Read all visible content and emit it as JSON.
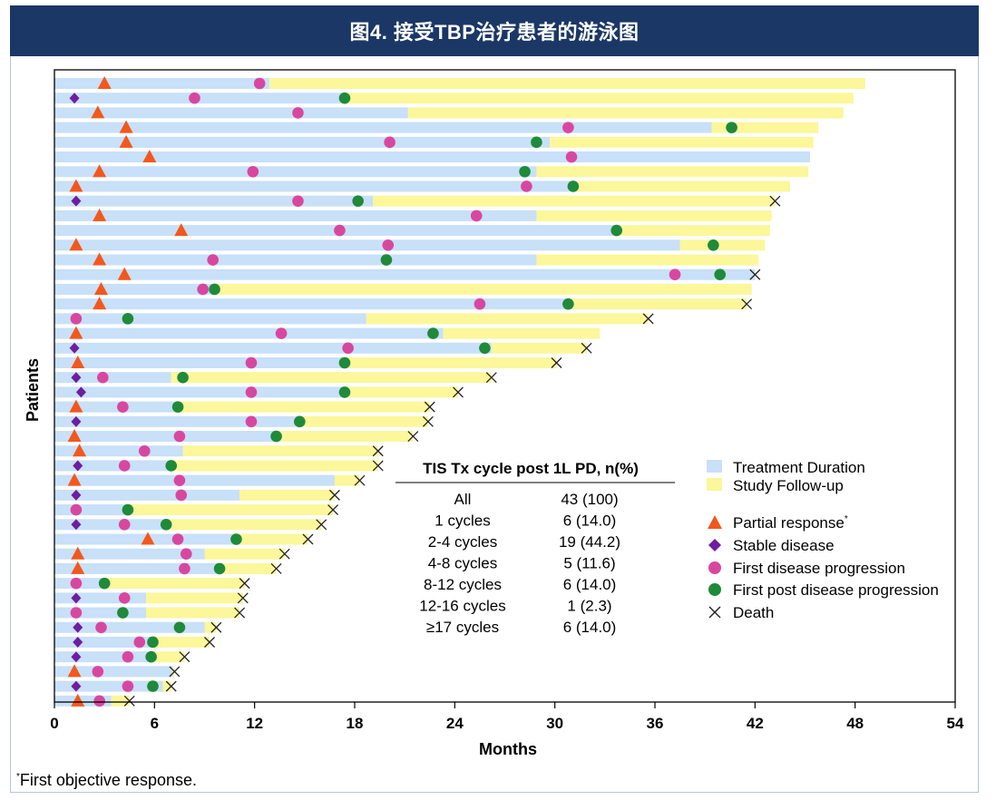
{
  "header": {
    "title": "图4. 接受TBP治疗患者的游泳图"
  },
  "footnote": {
    "mark": "*",
    "text": "First objective response."
  },
  "chart_data": {
    "type": "swimmer",
    "xlabel": "Months",
    "ylabel": "Patients",
    "xlim": [
      0,
      54
    ],
    "xticks": [
      0,
      6,
      12,
      18,
      24,
      30,
      36,
      42,
      48,
      54
    ],
    "legend": {
      "treatment": "Treatment Duration",
      "followup": "Study Follow-up",
      "pr": "Partial response",
      "pr_mark": "*",
      "sd": "Stable disease",
      "fdp": "First disease progression",
      "fpdp": "First post disease progression",
      "death": "Death"
    },
    "colors": {
      "treatment": "#c8e0f8",
      "followup": "#fbf79a",
      "pr": "#f2581d",
      "sd": "#6e1ea0",
      "fdp": "#d8479f",
      "fpdp": "#1f8a3a",
      "death": "#222222",
      "header": "#1b3766"
    },
    "table": {
      "title": "TIS Tx cycle post 1L PD, n(%)",
      "rows": [
        [
          "All",
          "43 (100)"
        ],
        [
          "1 cycles",
          "6 (14.0)"
        ],
        [
          "2-4 cycles",
          "19 (44.2)"
        ],
        [
          "4-8 cycles",
          "5 (11.6)"
        ],
        [
          "8-12 cycles",
          "6 (14.0)"
        ],
        [
          "12-16 cycles",
          "1 (2.3)"
        ],
        [
          "≥17 cycles",
          "6 (14.0)"
        ]
      ]
    },
    "patients": [
      {
        "tx": 12.9,
        "end": 48.6,
        "resp": "pr",
        "rx": 3.0,
        "fdp": 12.3,
        "fpdp": null,
        "death": null
      },
      {
        "tx": 17.4,
        "end": 47.9,
        "resp": "sd",
        "rx": 1.2,
        "fdp": 8.4,
        "fpdp": 17.4,
        "death": null
      },
      {
        "tx": 21.2,
        "end": 47.3,
        "resp": "pr",
        "rx": 2.6,
        "fdp": 14.6,
        "fpdp": null,
        "death": null
      },
      {
        "tx": 39.4,
        "end": 45.8,
        "resp": "pr",
        "rx": 4.3,
        "fdp": 30.8,
        "fpdp": 40.6,
        "death": null
      },
      {
        "tx": 29.7,
        "end": 45.5,
        "resp": "pr",
        "rx": 4.3,
        "fdp": 20.1,
        "fpdp": 28.9,
        "death": null
      },
      {
        "tx": 45.3,
        "end": 45.3,
        "resp": "pr",
        "rx": 5.7,
        "fdp": 31.0,
        "fpdp": null,
        "death": null
      },
      {
        "tx": 28.9,
        "end": 45.2,
        "resp": "pr",
        "rx": 2.7,
        "fdp": 11.9,
        "fpdp": 28.2,
        "death": null
      },
      {
        "tx": 31.1,
        "end": 44.1,
        "resp": "pr",
        "rx": 1.3,
        "fdp": 28.3,
        "fpdp": 31.1,
        "death": null
      },
      {
        "tx": 19.1,
        "end": 43.2,
        "resp": "sd",
        "rx": 1.3,
        "fdp": 14.6,
        "fpdp": 18.2,
        "death": 43.2
      },
      {
        "tx": 28.9,
        "end": 43.0,
        "resp": "pr",
        "rx": 2.7,
        "fdp": 25.3,
        "fpdp": null,
        "death": null
      },
      {
        "tx": 33.7,
        "end": 42.9,
        "resp": "pr",
        "rx": 7.6,
        "fdp": 17.1,
        "fpdp": 33.7,
        "death": null
      },
      {
        "tx": 37.5,
        "end": 42.6,
        "resp": "pr",
        "rx": 1.3,
        "fdp": 20.0,
        "fpdp": 39.5,
        "death": null
      },
      {
        "tx": 28.9,
        "end": 42.2,
        "resp": "pr",
        "rx": 2.7,
        "fdp": 9.5,
        "fpdp": 19.9,
        "death": null
      },
      {
        "tx": 42.0,
        "end": 42.0,
        "resp": "pr",
        "rx": 4.2,
        "fdp": 37.2,
        "fpdp": 39.9,
        "death": 42.0
      },
      {
        "tx": 9.6,
        "end": 41.8,
        "resp": "pr",
        "rx": 2.8,
        "fdp": 8.9,
        "fpdp": 9.6,
        "death": null
      },
      {
        "tx": 30.8,
        "end": 41.5,
        "resp": "pr",
        "rx": 2.7,
        "fdp": 25.5,
        "fpdp": 30.8,
        "death": 41.5
      },
      {
        "tx": 18.7,
        "end": 35.6,
        "resp": "fdp",
        "rx": 1.3,
        "fdp": 1.3,
        "fpdp": 4.4,
        "death": 35.6
      },
      {
        "tx": 23.3,
        "end": 32.7,
        "resp": "pr",
        "rx": 1.3,
        "fdp": 13.6,
        "fpdp": 22.7,
        "death": null
      },
      {
        "tx": 26.2,
        "end": 31.9,
        "resp": "sd",
        "rx": 1.2,
        "fdp": 17.6,
        "fpdp": 25.8,
        "death": 31.9
      },
      {
        "tx": 17.4,
        "end": 30.1,
        "resp": "pr",
        "rx": 1.4,
        "fdp": 11.8,
        "fpdp": 17.4,
        "death": 30.1
      },
      {
        "tx": 7.0,
        "end": 26.2,
        "resp": "sd",
        "rx": 1.3,
        "fdp": 2.9,
        "fpdp": 7.7,
        "death": 26.2
      },
      {
        "tx": 17.4,
        "end": 24.2,
        "resp": "sd",
        "rx": 1.6,
        "fdp": 11.8,
        "fpdp": 17.4,
        "death": 24.2
      },
      {
        "tx": 7.4,
        "end": 22.5,
        "resp": "pr",
        "rx": 1.3,
        "fdp": 4.1,
        "fpdp": 7.4,
        "death": 22.5
      },
      {
        "tx": 14.7,
        "end": 22.4,
        "resp": "sd",
        "rx": 1.3,
        "fdp": 11.8,
        "fpdp": 14.7,
        "death": 22.4
      },
      {
        "tx": 13.3,
        "end": 21.5,
        "resp": "pr",
        "rx": 1.2,
        "fdp": 7.5,
        "fpdp": 13.3,
        "death": 21.5
      },
      {
        "tx": 7.7,
        "end": 19.4,
        "resp": "pr",
        "rx": 1.5,
        "fdp": 5.4,
        "fpdp": null,
        "death": 19.4
      },
      {
        "tx": 7.0,
        "end": 19.4,
        "resp": "sd",
        "rx": 1.4,
        "fdp": 4.2,
        "fpdp": 7.0,
        "death": 19.4
      },
      {
        "tx": 16.8,
        "end": 18.3,
        "resp": "pr",
        "rx": 1.2,
        "fdp": 7.5,
        "fpdp": null,
        "death": 18.3
      },
      {
        "tx": 11.1,
        "end": 16.8,
        "resp": "sd",
        "rx": 1.3,
        "fdp": 7.6,
        "fpdp": null,
        "death": 16.8
      },
      {
        "tx": 4.4,
        "end": 16.7,
        "resp": "fdp",
        "rx": 1.3,
        "fdp": 1.3,
        "fpdp": 4.4,
        "death": 16.7
      },
      {
        "tx": 6.7,
        "end": 16.0,
        "resp": "sd",
        "rx": 1.3,
        "fdp": 4.2,
        "fpdp": 6.7,
        "death": 16.0
      },
      {
        "tx": 10.9,
        "end": 15.2,
        "resp": "pr",
        "rx": 5.6,
        "fdp": 7.4,
        "fpdp": 10.9,
        "death": 15.2
      },
      {
        "tx": 9.0,
        "end": 13.8,
        "resp": "pr",
        "rx": 1.4,
        "fdp": 7.9,
        "fpdp": null,
        "death": 13.8
      },
      {
        "tx": 9.9,
        "end": 13.3,
        "resp": "pr",
        "rx": 1.4,
        "fdp": 7.8,
        "fpdp": 9.9,
        "death": 13.3
      },
      {
        "tx": 3.0,
        "end": 11.4,
        "resp": "fdp",
        "rx": 1.3,
        "fdp": 1.3,
        "fpdp": 3.0,
        "death": 11.4
      },
      {
        "tx": 5.5,
        "end": 11.3,
        "resp": "sd",
        "rx": 1.3,
        "fdp": 4.2,
        "fpdp": null,
        "death": 11.3
      },
      {
        "tx": 5.5,
        "end": 11.1,
        "resp": "fdp",
        "rx": 1.3,
        "fdp": 1.3,
        "fpdp": 4.1,
        "death": 11.1
      },
      {
        "tx": 9.0,
        "end": 9.7,
        "resp": "sd",
        "rx": 1.4,
        "fdp": 2.8,
        "fpdp": 7.5,
        "death": 9.7
      },
      {
        "tx": 6.0,
        "end": 9.3,
        "resp": "sd",
        "rx": 1.4,
        "fdp": 5.1,
        "fpdp": 5.9,
        "death": 9.3
      },
      {
        "tx": 6.0,
        "end": 7.8,
        "resp": "sd",
        "rx": 1.3,
        "fdp": 4.4,
        "fpdp": 5.8,
        "death": 7.8
      },
      {
        "tx": 7.1,
        "end": 7.2,
        "resp": "pr",
        "rx": 1.2,
        "fdp": 2.6,
        "fpdp": null,
        "death": 7.2
      },
      {
        "tx": 6.5,
        "end": 7.0,
        "resp": "sd",
        "rx": 1.3,
        "fdp": 4.4,
        "fpdp": 5.9,
        "death": 7.0
      },
      {
        "tx": 3.4,
        "end": 4.5,
        "resp": "pr",
        "rx": 1.4,
        "fdp": 2.7,
        "fpdp": null,
        "death": 4.5
      }
    ]
  }
}
